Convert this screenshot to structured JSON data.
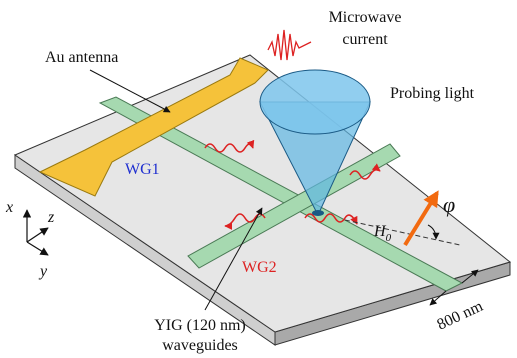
{
  "labels": {
    "microwave": [
      "Microwave",
      "current"
    ],
    "antenna": "Au antenna",
    "probing_light": "Probing light",
    "wg1": "WG1",
    "wg2": "WG2",
    "field": {
      "symbol": "H",
      "subscript": "0"
    },
    "angle": "φ",
    "axes": {
      "x": "x",
      "z": "z",
      "y": "y"
    },
    "yig": [
      "YIG (120 nm)",
      "waveguides"
    ],
    "width": "800 nm"
  }
}
